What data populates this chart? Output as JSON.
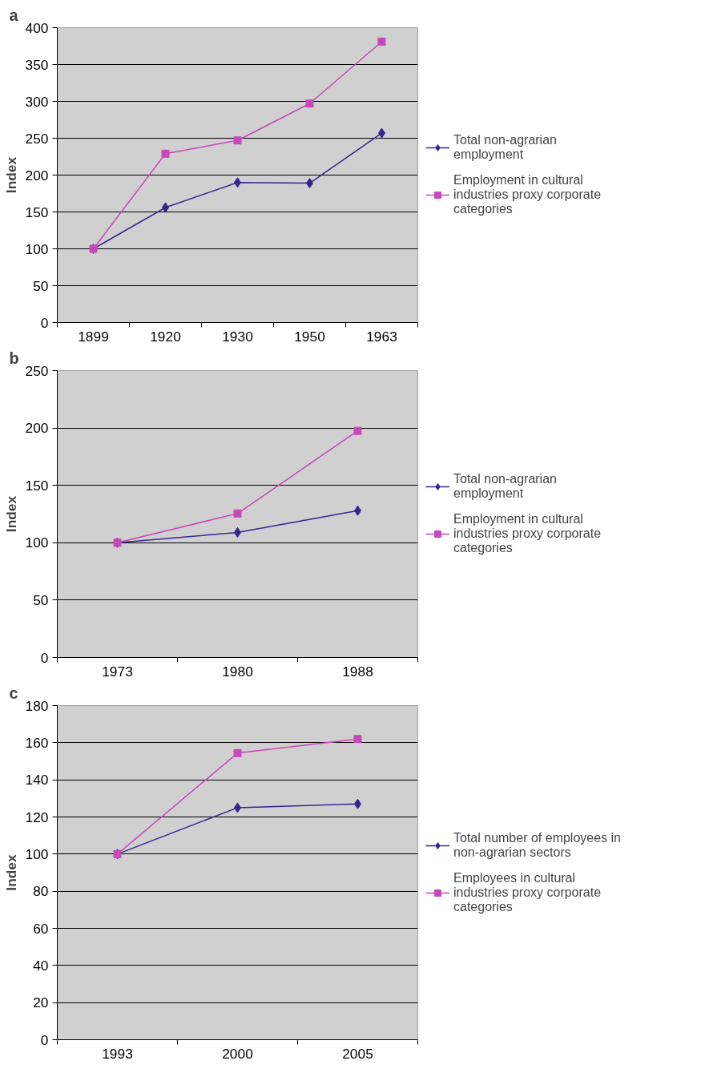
{
  "chart_data": [
    {
      "type": "line",
      "title": "a",
      "ylabel": "Index",
      "categories": [
        "1899",
        "1920",
        "1930",
        "1950",
        "1963"
      ],
      "ylim": [
        0,
        400
      ],
      "yticks": [
        0,
        50,
        100,
        150,
        200,
        250,
        300,
        350,
        400
      ],
      "grid": "y",
      "legend": "right",
      "series": [
        {
          "name": "Total non-agrarian employment",
          "color": "#33278f",
          "marker": "diamond",
          "values": [
            100,
            156,
            190,
            189,
            257
          ]
        },
        {
          "name": "Employment in cultural industries proxy corporate categories",
          "color": "#c748b8",
          "marker": "square",
          "values": [
            100,
            229,
            247,
            297,
            381
          ]
        }
      ]
    },
    {
      "type": "line",
      "title": "b",
      "ylabel": "Index",
      "categories": [
        "1973",
        "1980",
        "1988"
      ],
      "ylim": [
        0,
        250
      ],
      "yticks": [
        0,
        50,
        100,
        150,
        200,
        250
      ],
      "grid": "y",
      "legend": "right",
      "series": [
        {
          "name": "Total non-agrarian employment",
          "color": "#33278f",
          "marker": "diamond",
          "values": [
            100,
            109,
            128
          ]
        },
        {
          "name": "Employment in cultural industries proxy corporate categories",
          "color": "#c748b8",
          "marker": "square",
          "values": [
            100,
            125.5,
            197.5
          ]
        }
      ]
    },
    {
      "type": "line",
      "title": "c",
      "ylabel": "Index",
      "categories": [
        "1993",
        "2000",
        "2005"
      ],
      "ylim": [
        0,
        180
      ],
      "yticks": [
        0,
        20,
        40,
        60,
        80,
        100,
        120,
        140,
        160,
        180
      ],
      "grid": "y",
      "legend": "right",
      "series": [
        {
          "name": "Total number of employees in non-agrarian sectors",
          "color": "#33278f",
          "marker": "diamond",
          "values": [
            100,
            125,
            127
          ]
        },
        {
          "name": "Employees in cultural industries proxy corporate categories",
          "color": "#c748b8",
          "marker": "square",
          "values": [
            100,
            154.4,
            162
          ]
        }
      ]
    }
  ]
}
